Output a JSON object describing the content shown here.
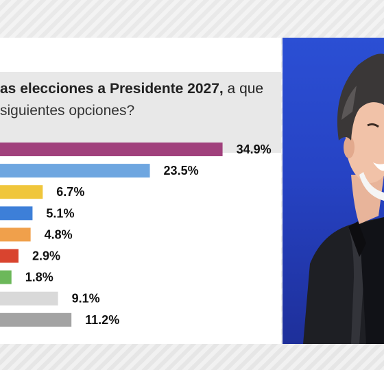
{
  "question": {
    "line1_bold": "as elecciones a Presidente 2027,",
    "line1_rest": " a que",
    "line2": "siguientes opciones?"
  },
  "chart_data": {
    "type": "bar",
    "orientation": "horizontal",
    "values": [
      34.9,
      23.5,
      6.7,
      5.1,
      4.8,
      2.9,
      1.8,
      9.1,
      11.2
    ],
    "labels": [
      "34.9%",
      "23.5%",
      "6.7%",
      "5.1%",
      "4.8%",
      "2.9%",
      "1.8%",
      "9.1%",
      "11.2%"
    ],
    "colors": [
      "#a0407c",
      "#6ea6e0",
      "#f0c63b",
      "#3d7fd8",
      "#f0a04b",
      "#d9442f",
      "#6cb85a",
      "#d9d9d9",
      "#a3a3a3"
    ],
    "grid": false,
    "legend": "none"
  },
  "photo": {
    "background_color": "#2b4fd4"
  }
}
